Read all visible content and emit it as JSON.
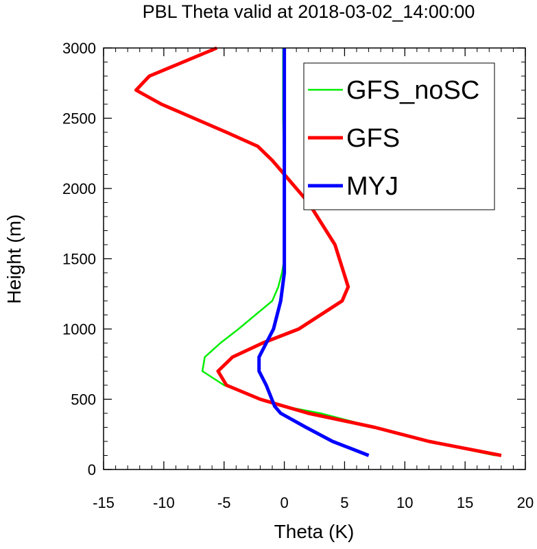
{
  "chart_data": {
    "type": "line",
    "title": "PBL Theta valid at 2018-03-02_14:00:00",
    "xlabel": "Theta (K)",
    "ylabel": "Height (m)",
    "xlim": [
      -15,
      20
    ],
    "ylim": [
      0,
      3000
    ],
    "x_ticks": [
      -15,
      -10,
      -5,
      0,
      5,
      10,
      15,
      20
    ],
    "y_ticks": [
      0,
      500,
      1000,
      1500,
      2000,
      2500,
      3000
    ],
    "x_tick_labels": [
      "-15",
      "-10",
      "-5",
      "0",
      "5",
      "10",
      "15",
      "20"
    ],
    "y_tick_labels": [
      "0",
      "500",
      "1000",
      "1500",
      "2000",
      "2500",
      "3000"
    ],
    "grid": false,
    "legend_position": "top-right",
    "series": [
      {
        "name": "GFS_noSC",
        "color": "#00ee00",
        "line_weight": "thin",
        "points": [
          [
            17.5,
            100
          ],
          [
            12,
            200
          ],
          [
            7.5,
            300
          ],
          [
            3,
            400
          ],
          [
            0,
            450
          ],
          [
            -2,
            500
          ],
          [
            -5,
            600
          ],
          [
            -6.8,
            700
          ],
          [
            -6.6,
            800
          ],
          [
            -5.3,
            900
          ],
          [
            -3.8,
            1000
          ],
          [
            -1,
            1200
          ],
          [
            -0.5,
            1300
          ],
          [
            -0.2,
            1400
          ],
          [
            0,
            1500
          ],
          [
            0,
            2000
          ],
          [
            -0.1,
            2500
          ],
          [
            -0.1,
            3000
          ]
        ]
      },
      {
        "name": "GFS",
        "color": "#ff0000",
        "line_weight": "thick",
        "points": [
          [
            18,
            100
          ],
          [
            12,
            200
          ],
          [
            7.5,
            300
          ],
          [
            2,
            400
          ],
          [
            -2,
            500
          ],
          [
            -4.8,
            600
          ],
          [
            -5.5,
            700
          ],
          [
            -4.3,
            800
          ],
          [
            -1.8,
            900
          ],
          [
            1.2,
            1000
          ],
          [
            4.8,
            1200
          ],
          [
            5.3,
            1300
          ],
          [
            4.2,
            1600
          ],
          [
            2,
            1900
          ],
          [
            0,
            2100
          ],
          [
            -1,
            2200
          ],
          [
            -2.2,
            2300
          ],
          [
            -4.8,
            2400
          ],
          [
            -10.2,
            2600
          ],
          [
            -12.3,
            2700
          ],
          [
            -11.2,
            2800
          ],
          [
            -5.6,
            3000
          ]
        ]
      },
      {
        "name": "MYJ",
        "color": "#0000ff",
        "line_weight": "thick",
        "points": [
          [
            7,
            100
          ],
          [
            4,
            200
          ],
          [
            1.8,
            300
          ],
          [
            -0.3,
            400
          ],
          [
            -0.8,
            450
          ],
          [
            -1.5,
            600
          ],
          [
            -2.1,
            700
          ],
          [
            -2.1,
            800
          ],
          [
            -1.5,
            900
          ],
          [
            -0.9,
            1000
          ],
          [
            -0.3,
            1200
          ],
          [
            0,
            1400
          ],
          [
            0,
            2000
          ],
          [
            0,
            3000
          ]
        ]
      }
    ]
  }
}
